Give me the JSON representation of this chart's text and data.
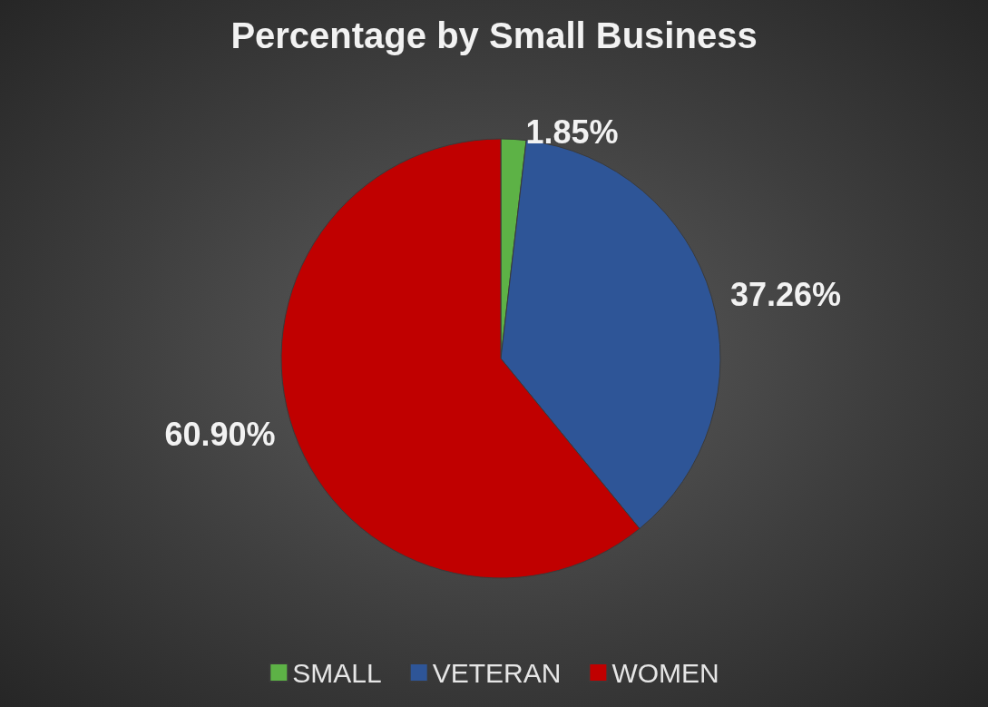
{
  "chart_data": {
    "type": "pie",
    "title": "Percentage by Small Business",
    "categories": [
      "SMALL",
      "VETERAN",
      "WOMEN"
    ],
    "values": [
      1.85,
      37.26,
      60.9
    ],
    "colors": [
      "#5db246",
      "#2e5597",
      "#c00000"
    ],
    "value_labels": [
      "1.85%",
      "37.26%",
      "60.90%"
    ],
    "legend": "bottom"
  }
}
